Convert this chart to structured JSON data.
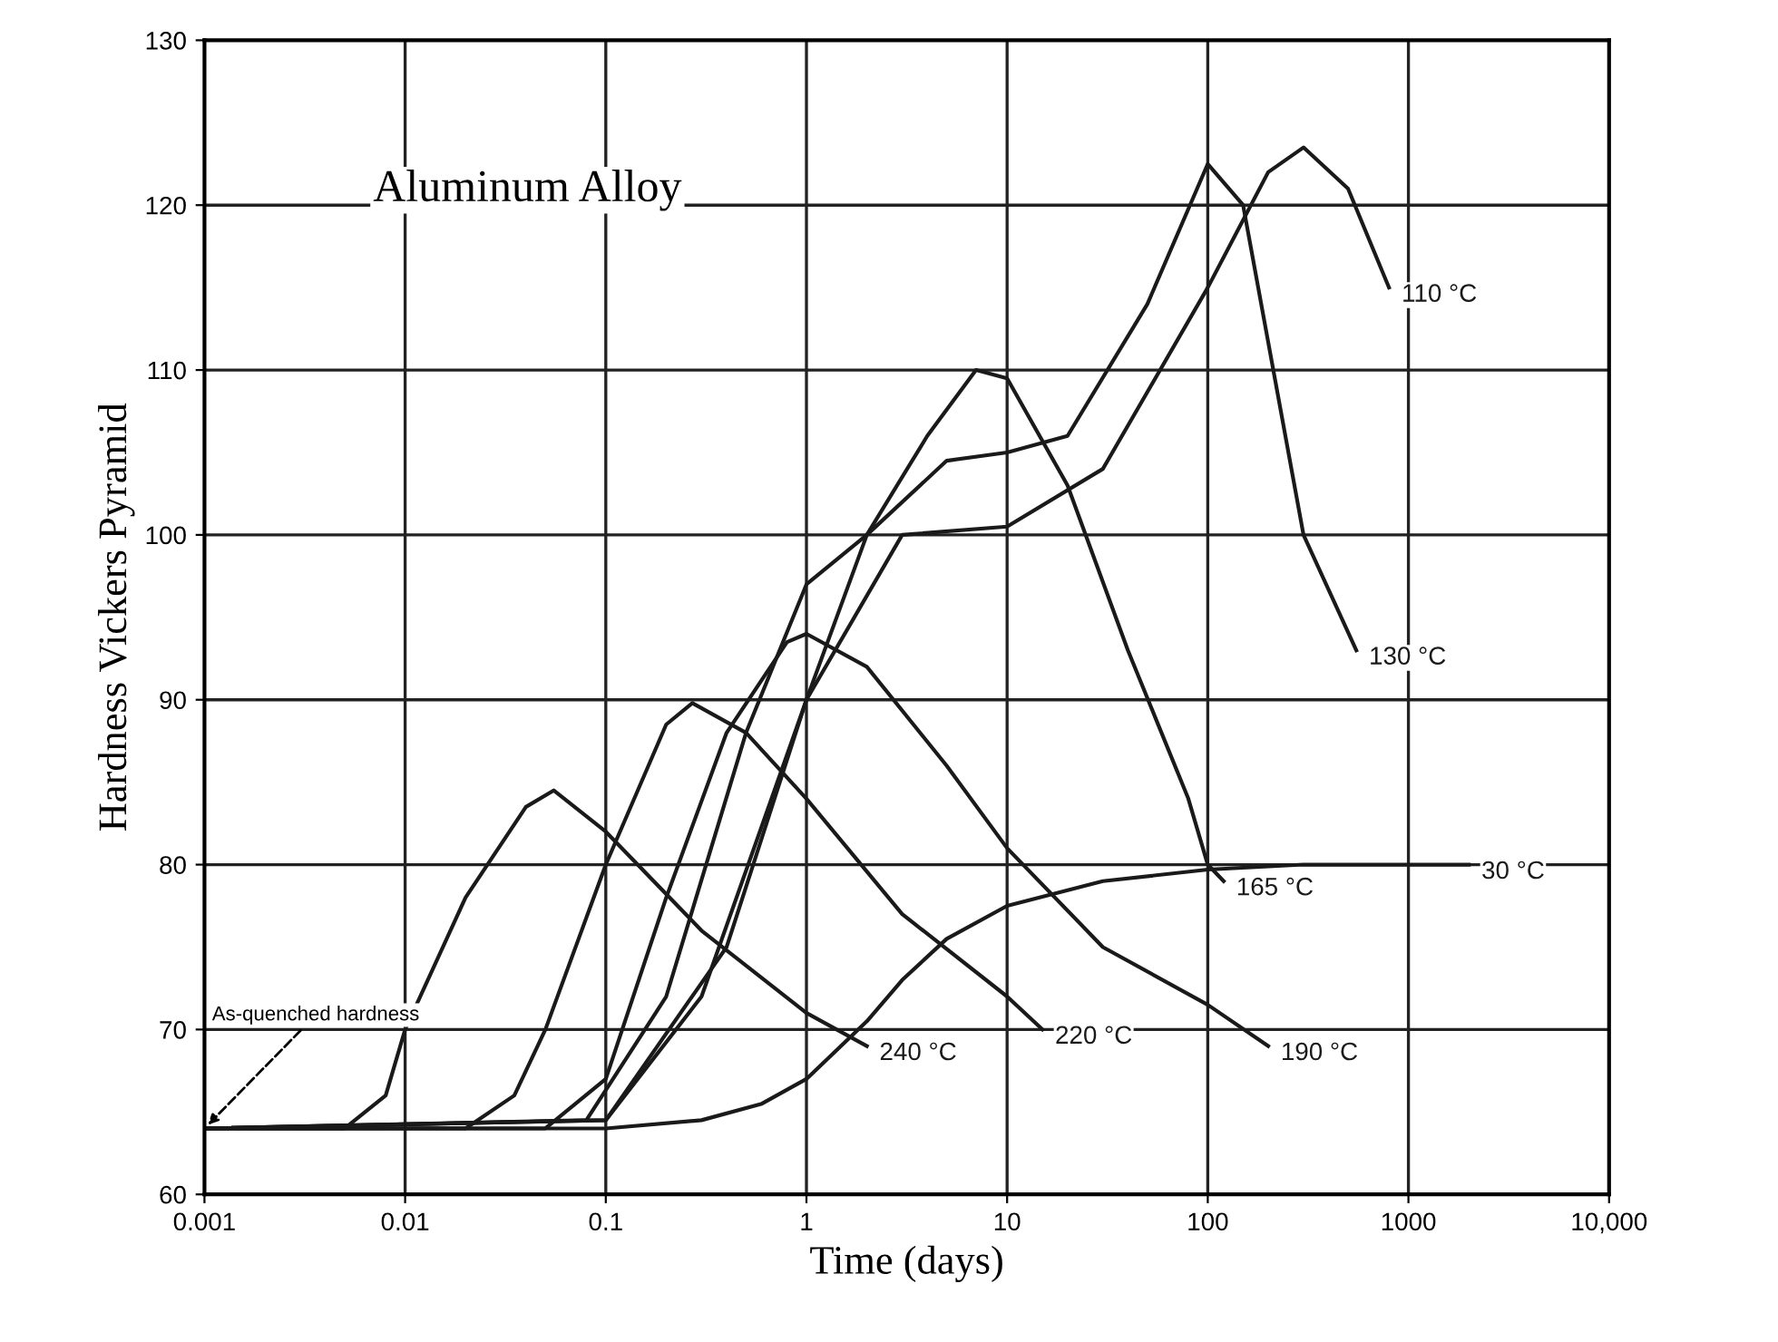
{
  "chart_data": {
    "type": "line",
    "xlabel": "Time (days)",
    "ylabel": "Hardness Vickers Pyramid",
    "log": "x",
    "grid": true,
    "legend": false,
    "marker": "none",
    "line_style": "solid",
    "xlim": [
      0.001,
      10000
    ],
    "ylim": [
      60,
      130
    ],
    "xticks": [
      0.001,
      0.01,
      0.1,
      1,
      10,
      100,
      1000,
      {
        "value": 10000,
        "label": "10,000"
      }
    ],
    "yticks": [
      60,
      70,
      80,
      90,
      100,
      110,
      120,
      130
    ],
    "annotations": [
      "Aluminum Alloy",
      {
        "text": "As-quenched hardness",
        "x": 0.001,
        "y": 64
      }
    ],
    "series": [
      {
        "name": "30 °C",
        "color": "#1a1a1a",
        "x": [
          0.001,
          0.1,
          0.3,
          0.6,
          1,
          2,
          3,
          5,
          10,
          30,
          100,
          300,
          1000,
          2000
        ],
        "values": [
          64,
          64,
          64.5,
          65.5,
          67,
          70.5,
          73,
          75.5,
          77.5,
          79,
          79.7,
          80,
          80,
          80
        ]
      },
      {
        "name": "240 °C",
        "color": "#1a1a1a",
        "x": [
          0.001,
          0.005,
          0.008,
          0.01,
          0.02,
          0.04,
          0.055,
          0.1,
          0.3,
          1,
          2
        ],
        "values": [
          64,
          64,
          66,
          70,
          78,
          83.5,
          84.5,
          82,
          76,
          71,
          69
        ]
      },
      {
        "name": "220 °C",
        "color": "#1a1a1a",
        "x": [
          0.001,
          0.02,
          0.035,
          0.05,
          0.1,
          0.2,
          0.27,
          0.5,
          1,
          3,
          10,
          15
        ],
        "values": [
          64,
          64,
          66,
          70,
          80,
          88.5,
          89.8,
          88,
          84,
          77,
          72,
          70
        ]
      },
      {
        "name": "190 °C",
        "color": "#1a1a1a",
        "x": [
          0.001,
          0.05,
          0.1,
          0.2,
          0.4,
          0.8,
          1,
          2,
          5,
          10,
          30,
          100,
          200
        ],
        "values": [
          64,
          64,
          67,
          78,
          88,
          93.5,
          94,
          92,
          86,
          81,
          75,
          71.5,
          69
        ]
      },
      {
        "name": "165 °C",
        "color": "#1a1a1a",
        "x": [
          0.001,
          0.08,
          0.2,
          0.5,
          1,
          2,
          4,
          7,
          10,
          20,
          40,
          80,
          100,
          120
        ],
        "values": [
          64,
          64.5,
          72,
          88,
          97,
          100,
          106,
          110,
          109.5,
          103,
          93,
          84,
          80,
          79
        ]
      },
      {
        "name": "130 °C",
        "color": "#1a1a1a",
        "x": [
          0.001,
          0.1,
          0.3,
          1,
          2,
          5,
          10,
          20,
          50,
          100,
          150,
          300,
          550
        ],
        "values": [
          64,
          64.5,
          72,
          90,
          100,
          104.5,
          105,
          106,
          114,
          122.5,
          120,
          100,
          93
        ]
      },
      {
        "name": "110 °C",
        "color": "#1a1a1a",
        "x": [
          0.001,
          0.1,
          0.4,
          1,
          3,
          10,
          30,
          100,
          200,
          300,
          500,
          800
        ],
        "values": [
          64,
          64.5,
          75,
          90,
          100,
          100.5,
          104,
          115,
          122,
          123.5,
          121,
          115
        ]
      }
    ]
  }
}
